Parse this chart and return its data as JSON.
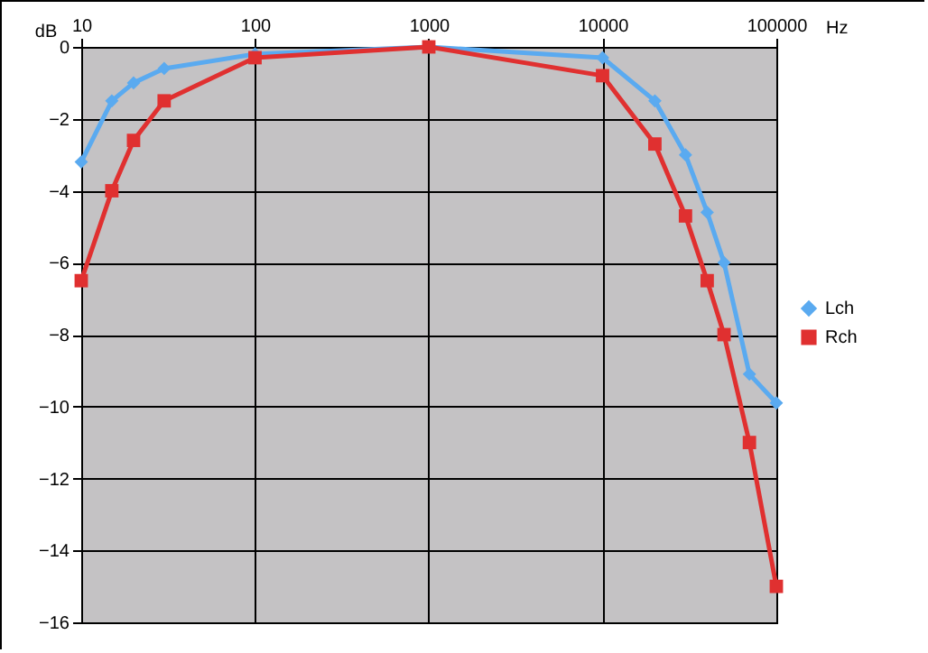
{
  "chart_data": {
    "type": "line",
    "xlabel": "Hz",
    "ylabel": "dB",
    "x": [
      10,
      15,
      20,
      30,
      100,
      1000,
      10000,
      20000,
      30000,
      40000,
      50000,
      70000,
      100000
    ],
    "series": [
      {
        "name": "Lch",
        "color": "#5aaaf0",
        "marker": "diamond",
        "values": [
          -3.2,
          -1.5,
          -1.0,
          -0.6,
          -0.2,
          0,
          -0.3,
          -1.5,
          -3.0,
          -4.6,
          -6.0,
          -9.1,
          -9.9
        ]
      },
      {
        "name": "Rch",
        "color": "#e03030",
        "marker": "square",
        "values": [
          -6.5,
          -4.0,
          -2.6,
          -1.5,
          -0.3,
          0,
          -0.8,
          -2.7,
          -4.7,
          -6.5,
          -8.0,
          -11.0,
          -15.0
        ]
      }
    ],
    "log": "x",
    "xlim": [
      10,
      100000
    ],
    "xticks": [
      10,
      100,
      1000,
      10000,
      100000
    ],
    "ylim": [
      -16,
      0
    ],
    "yticks": [
      0,
      -2,
      -4,
      -6,
      -8,
      -10,
      -12,
      -14,
      -16
    ],
    "grid": true,
    "legend": "right",
    "line_style": "solid"
  }
}
